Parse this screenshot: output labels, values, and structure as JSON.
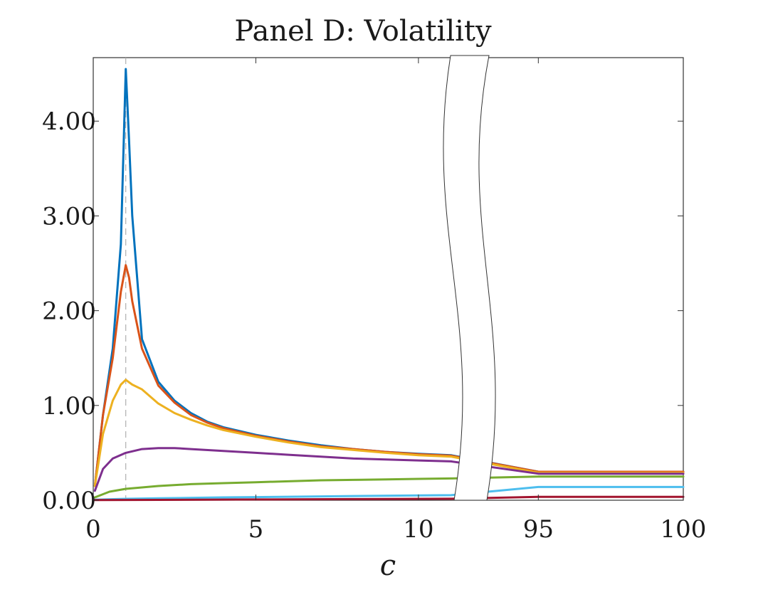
{
  "chart_data": {
    "type": "line",
    "title": "Panel D: Volatility",
    "xlabel": "c",
    "ylabel": "",
    "ylim": [
      0,
      4.67
    ],
    "x_segments": [
      {
        "xlim": [
          0,
          11.25
        ],
        "ticks": [
          0,
          5,
          10
        ]
      },
      {
        "xlim": [
          93.2,
          100
        ],
        "ticks": [
          95,
          100
        ]
      }
    ],
    "x_break": "wavy",
    "yticks": [
      0,
      1,
      2,
      3,
      4
    ],
    "ytick_labels": [
      "0.00",
      "1.00",
      "2.00",
      "3.00",
      "4.00"
    ],
    "vline": {
      "x": 1,
      "style": "dashed",
      "color": "#b0b0b0"
    },
    "grid": false,
    "series": [
      {
        "color": "#0072BD",
        "points": [
          [
            0.05,
            0.15
          ],
          [
            0.3,
            0.9
          ],
          [
            0.6,
            1.6
          ],
          [
            0.85,
            2.7
          ],
          [
            1.0,
            4.55
          ],
          [
            1.1,
            3.8
          ],
          [
            1.2,
            3.0
          ],
          [
            1.5,
            1.7
          ],
          [
            2.0,
            1.25
          ],
          [
            2.5,
            1.05
          ],
          [
            3,
            0.92
          ],
          [
            3.5,
            0.83
          ],
          [
            4,
            0.77
          ],
          [
            5,
            0.69
          ],
          [
            6,
            0.63
          ],
          [
            7,
            0.58
          ],
          [
            8,
            0.54
          ],
          [
            9,
            0.51
          ],
          [
            10,
            0.49
          ],
          [
            11,
            0.475
          ],
          [
            95,
            0.3
          ],
          [
            100,
            0.3
          ]
        ]
      },
      {
        "color": "#D95319",
        "points": [
          [
            0.05,
            0.15
          ],
          [
            0.3,
            0.9
          ],
          [
            0.6,
            1.5
          ],
          [
            0.85,
            2.2
          ],
          [
            1.0,
            2.48
          ],
          [
            1.1,
            2.35
          ],
          [
            1.2,
            2.1
          ],
          [
            1.5,
            1.6
          ],
          [
            2.0,
            1.21
          ],
          [
            2.5,
            1.03
          ],
          [
            3,
            0.9
          ],
          [
            3.5,
            0.82
          ],
          [
            4,
            0.76
          ],
          [
            5,
            0.68
          ],
          [
            6,
            0.62
          ],
          [
            7,
            0.57
          ],
          [
            8,
            0.54
          ],
          [
            9,
            0.51
          ],
          [
            10,
            0.485
          ],
          [
            11,
            0.47
          ],
          [
            95,
            0.3
          ],
          [
            100,
            0.3
          ]
        ]
      },
      {
        "color": "#EDB120",
        "points": [
          [
            0.05,
            0.15
          ],
          [
            0.3,
            0.7
          ],
          [
            0.6,
            1.05
          ],
          [
            0.85,
            1.22
          ],
          [
            1.0,
            1.27
          ],
          [
            1.2,
            1.22
          ],
          [
            1.5,
            1.17
          ],
          [
            2.0,
            1.02
          ],
          [
            2.5,
            0.92
          ],
          [
            3,
            0.85
          ],
          [
            3.5,
            0.79
          ],
          [
            4,
            0.74
          ],
          [
            5,
            0.67
          ],
          [
            6,
            0.61
          ],
          [
            7,
            0.56
          ],
          [
            8,
            0.53
          ],
          [
            9,
            0.5
          ],
          [
            10,
            0.475
          ],
          [
            11,
            0.46
          ],
          [
            95,
            0.29
          ],
          [
            100,
            0.29
          ]
        ]
      },
      {
        "color": "#7E2F8E",
        "points": [
          [
            0.05,
            0.1
          ],
          [
            0.3,
            0.33
          ],
          [
            0.6,
            0.44
          ],
          [
            1.0,
            0.5
          ],
          [
            1.5,
            0.54
          ],
          [
            2.0,
            0.55
          ],
          [
            2.5,
            0.55
          ],
          [
            3,
            0.54
          ],
          [
            4,
            0.52
          ],
          [
            5,
            0.5
          ],
          [
            6,
            0.48
          ],
          [
            7,
            0.46
          ],
          [
            8,
            0.44
          ],
          [
            9,
            0.43
          ],
          [
            10,
            0.42
          ],
          [
            11,
            0.41
          ],
          [
            95,
            0.28
          ],
          [
            100,
            0.28
          ]
        ]
      },
      {
        "color": "#77AC30",
        "points": [
          [
            0.05,
            0.03
          ],
          [
            0.5,
            0.09
          ],
          [
            1,
            0.12
          ],
          [
            2,
            0.15
          ],
          [
            3,
            0.17
          ],
          [
            4,
            0.18
          ],
          [
            5,
            0.19
          ],
          [
            6,
            0.2
          ],
          [
            7,
            0.21
          ],
          [
            8,
            0.215
          ],
          [
            9,
            0.22
          ],
          [
            10,
            0.225
          ],
          [
            11,
            0.23
          ],
          [
            95,
            0.25
          ],
          [
            100,
            0.25
          ]
        ]
      },
      {
        "color": "#4DBEEE",
        "points": [
          [
            0.05,
            0.005
          ],
          [
            1,
            0.015
          ],
          [
            2,
            0.02
          ],
          [
            4,
            0.03
          ],
          [
            6,
            0.037
          ],
          [
            8,
            0.044
          ],
          [
            10,
            0.05
          ],
          [
            11,
            0.053
          ],
          [
            95,
            0.14
          ],
          [
            100,
            0.14
          ]
        ]
      },
      {
        "color": "#A2142F",
        "points": [
          [
            0.05,
            0.002
          ],
          [
            2,
            0.004
          ],
          [
            5,
            0.008
          ],
          [
            8,
            0.012
          ],
          [
            11,
            0.016
          ],
          [
            95,
            0.035
          ],
          [
            100,
            0.035
          ]
        ]
      }
    ]
  }
}
